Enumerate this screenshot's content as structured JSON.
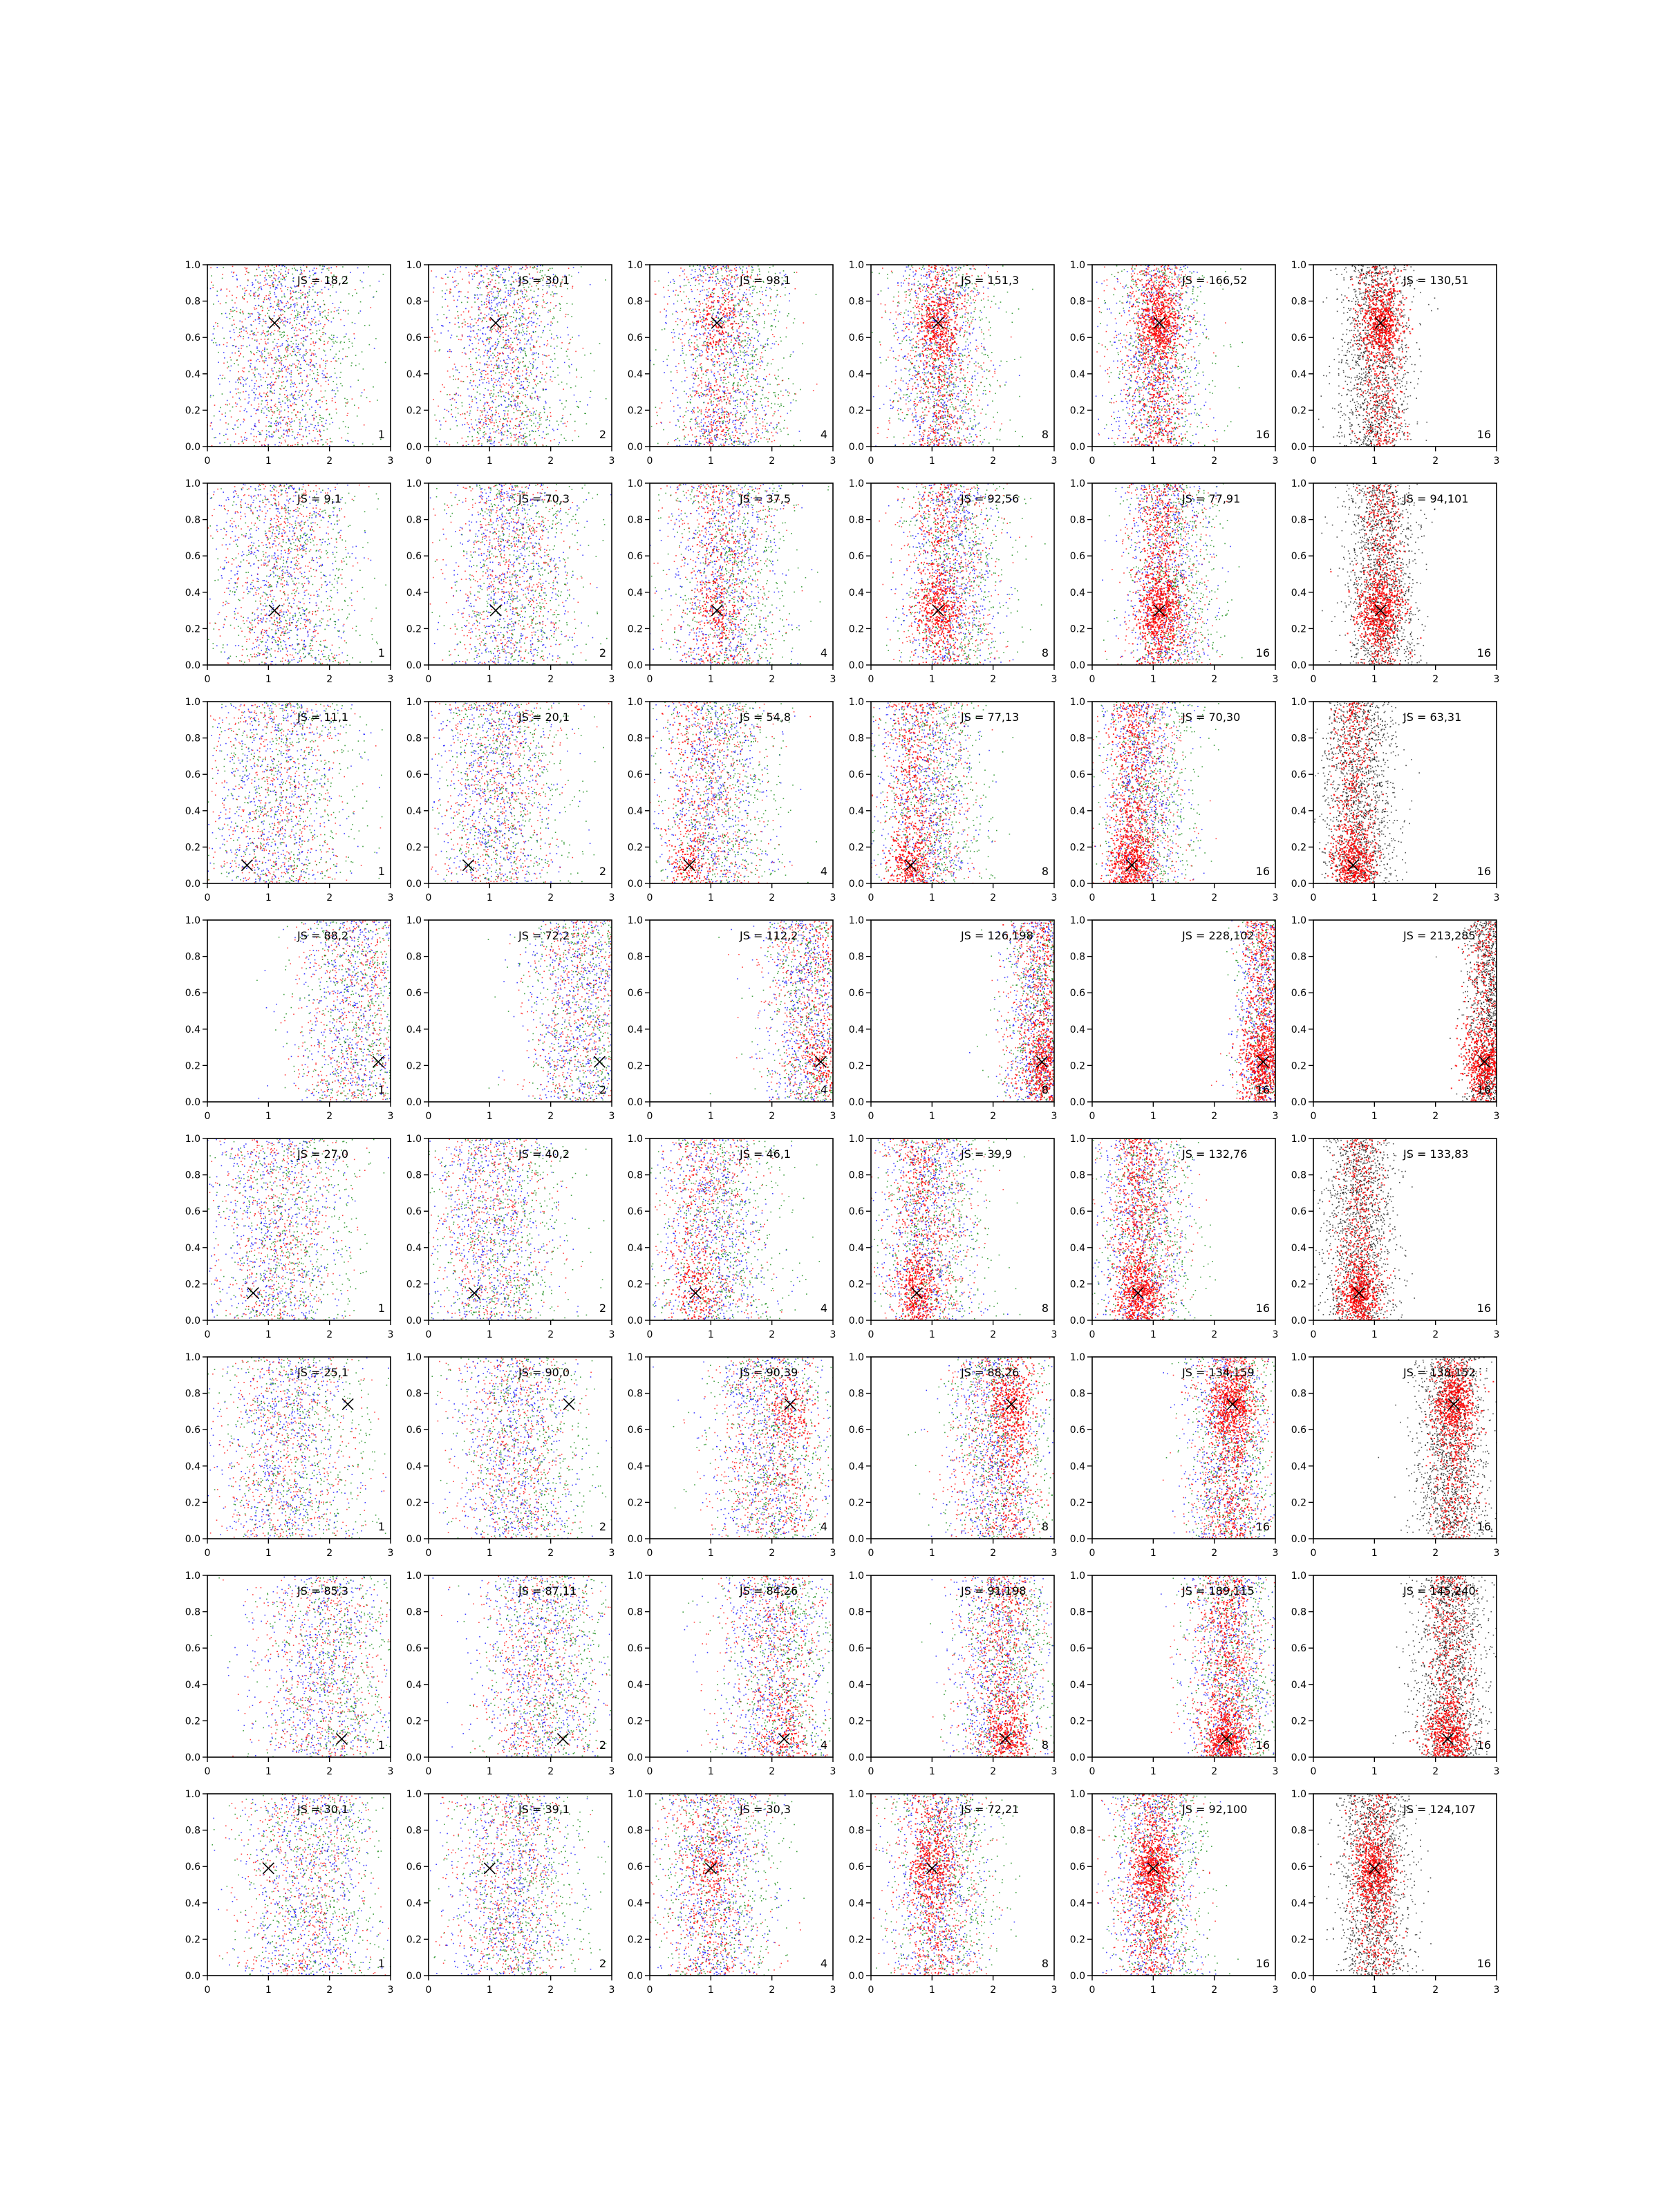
{
  "chart_data": {
    "type": "scatter",
    "layout": {
      "rows": 8,
      "cols": 6
    },
    "xlim": [
      0,
      3
    ],
    "ylim": [
      0,
      1
    ],
    "x_ticks": [
      "0",
      "1",
      "2",
      "3"
    ],
    "y_ticks": [
      "0.0",
      "0.2",
      "0.4",
      "0.6",
      "0.8",
      "1.0"
    ],
    "grid": false,
    "colors": {
      "blue": "#0000ff",
      "green": "#008000",
      "red": "#ff0000",
      "black": "#000000",
      "marker": "#000000"
    },
    "rows": [
      {
        "marker": [
          1.1,
          0.68
        ],
        "center_x": [
          1.2,
          1.2,
          1.2,
          1.1,
          1.0,
          1.0
        ],
        "spread": [
          0.55,
          0.5,
          0.45,
          0.4,
          0.35,
          0.3
        ],
        "panels": [
          {
            "js": "JS = 18,2",
            "n": "1"
          },
          {
            "js": "JS = 30,1",
            "n": "2"
          },
          {
            "js": "JS = 98,1",
            "n": "4"
          },
          {
            "js": "JS = 151,3",
            "n": "8"
          },
          {
            "js": "JS = 166,52",
            "n": "16"
          },
          {
            "js": "JS = 130,51",
            "n": "16"
          }
        ]
      },
      {
        "marker": [
          1.1,
          0.3
        ],
        "center_x": [
          1.2,
          1.3,
          1.2,
          1.3,
          1.2,
          1.1
        ],
        "spread": [
          0.55,
          0.5,
          0.45,
          0.4,
          0.35,
          0.3
        ],
        "panels": [
          {
            "js": "JS = 9,1",
            "n": "1"
          },
          {
            "js": "JS = 70,3",
            "n": "2"
          },
          {
            "js": "JS = 37,5",
            "n": "4"
          },
          {
            "js": "JS = 92,56",
            "n": "8"
          },
          {
            "js": "JS = 77,91",
            "n": "16"
          },
          {
            "js": "JS = 94,101",
            "n": "16"
          }
        ]
      },
      {
        "marker": [
          0.65,
          0.1
        ],
        "center_x": [
          1.1,
          1.1,
          1.0,
          0.9,
          0.8,
          0.75
        ],
        "spread": [
          0.55,
          0.5,
          0.45,
          0.4,
          0.35,
          0.3
        ],
        "panels": [
          {
            "js": "JS = 11,1",
            "n": "1"
          },
          {
            "js": "JS = 20,1",
            "n": "2"
          },
          {
            "js": "JS = 54,8",
            "n": "4"
          },
          {
            "js": "JS = 77,13",
            "n": "8"
          },
          {
            "js": "JS = 70,30",
            "n": "16"
          },
          {
            "js": "JS = 63,31",
            "n": "16"
          }
        ]
      },
      {
        "marker": [
          2.8,
          0.22
        ],
        "center_x": [
          2.4,
          2.5,
          2.6,
          2.75,
          2.85,
          2.9
        ],
        "spread": [
          0.5,
          0.45,
          0.4,
          0.3,
          0.25,
          0.2
        ],
        "panels": [
          {
            "js": "JS = 88,2",
            "n": "1"
          },
          {
            "js": "JS = 72,2",
            "n": "2"
          },
          {
            "js": "JS = 112,2",
            "n": "4"
          },
          {
            "js": "JS = 126,198",
            "n": "8"
          },
          {
            "js": "JS = 228,102",
            "n": "16"
          },
          {
            "js": "JS = 213,285",
            "n": "16"
          }
        ]
      },
      {
        "marker": [
          0.75,
          0.15
        ],
        "center_x": [
          1.1,
          1.0,
          1.0,
          0.9,
          0.8,
          0.75
        ],
        "spread": [
          0.55,
          0.5,
          0.45,
          0.4,
          0.35,
          0.3
        ],
        "panels": [
          {
            "js": "JS = 27,0",
            "n": "1"
          },
          {
            "js": "JS = 40,2",
            "n": "2"
          },
          {
            "js": "JS = 46,1",
            "n": "4"
          },
          {
            "js": "JS = 39,9",
            "n": "8"
          },
          {
            "js": "JS = 132,76",
            "n": "16"
          },
          {
            "js": "JS = 133,83",
            "n": "16"
          }
        ]
      },
      {
        "marker": [
          2.3,
          0.74
        ],
        "center_x": [
          1.3,
          1.4,
          1.9,
          2.0,
          2.2,
          2.25
        ],
        "spread": [
          0.55,
          0.5,
          0.45,
          0.4,
          0.35,
          0.3
        ],
        "panels": [
          {
            "js": "JS = 25,1",
            "n": "1"
          },
          {
            "js": "JS = 90,0",
            "n": "2"
          },
          {
            "js": "JS = 90,39",
            "n": "4"
          },
          {
            "js": "JS = 88,26",
            "n": "8"
          },
          {
            "js": "JS = 134,159",
            "n": "16"
          },
          {
            "js": "JS = 138,152",
            "n": "16"
          }
        ]
      },
      {
        "marker": [
          2.2,
          0.1
        ],
        "center_x": [
          1.9,
          1.8,
          2.0,
          2.1,
          2.2,
          2.25
        ],
        "spread": [
          0.55,
          0.5,
          0.45,
          0.4,
          0.35,
          0.3
        ],
        "panels": [
          {
            "js": "JS = 85,3",
            "n": "1"
          },
          {
            "js": "JS = 87,11",
            "n": "2"
          },
          {
            "js": "JS = 84,26",
            "n": "4"
          },
          {
            "js": "JS = 91,198",
            "n": "8"
          },
          {
            "js": "JS = 189,115",
            "n": "16"
          },
          {
            "js": "JS = 145,240",
            "n": "16"
          }
        ]
      },
      {
        "marker": [
          1.0,
          0.59
        ],
        "center_x": [
          1.6,
          1.3,
          1.0,
          1.1,
          1.0,
          1.0
        ],
        "spread": [
          0.55,
          0.5,
          0.45,
          0.4,
          0.35,
          0.3
        ],
        "panels": [
          {
            "js": "JS = 30,1",
            "n": "1"
          },
          {
            "js": "JS = 39,1",
            "n": "2"
          },
          {
            "js": "JS = 30,3",
            "n": "4"
          },
          {
            "js": "JS = 72,21",
            "n": "8"
          },
          {
            "js": "JS = 92,100",
            "n": "16"
          },
          {
            "js": "JS = 124,107",
            "n": "16"
          }
        ]
      }
    ]
  }
}
